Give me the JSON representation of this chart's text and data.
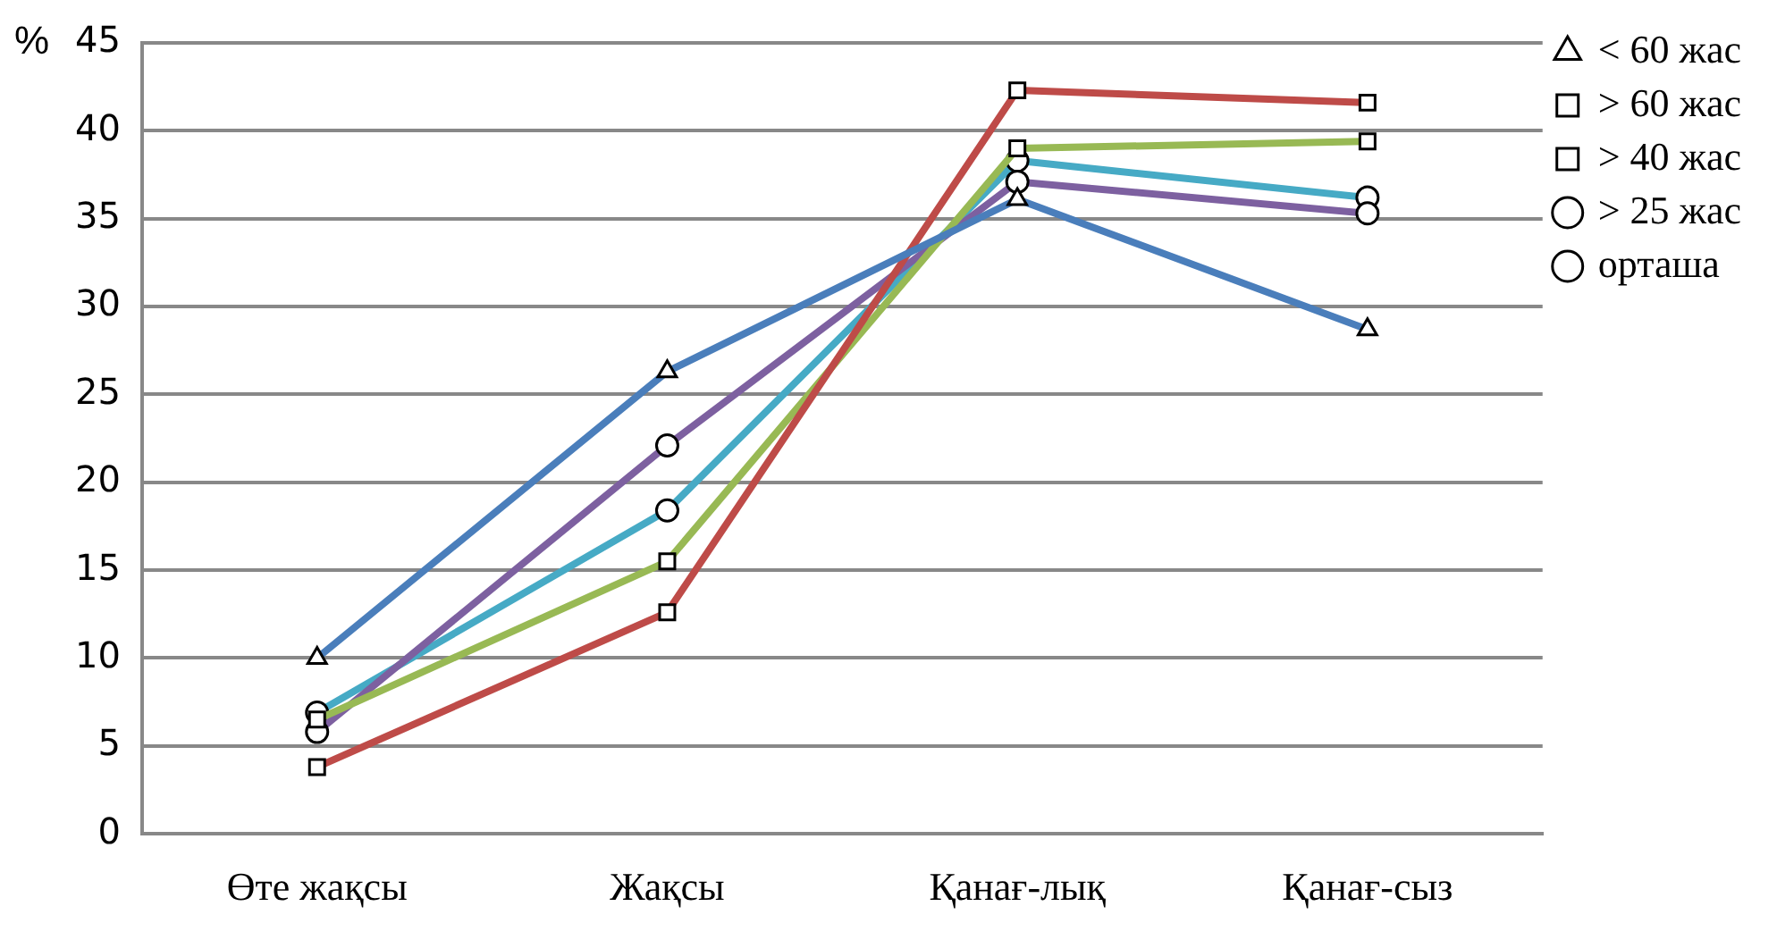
{
  "chart_data": {
    "type": "line",
    "ylabel": "%",
    "categories": [
      "Өте жақсы",
      "Жақсы",
      "Қанағ-лық",
      "Қанағ-сыз"
    ],
    "series": [
      {
        "name": "< 60 жас",
        "color": "#4a7ebb",
        "marker": "triangle",
        "values": [
          10,
          26.3,
          36.1,
          28.7
        ]
      },
      {
        "name": "> 60 жас",
        "color": "#be4b48",
        "marker": "square",
        "values": [
          3.8,
          12.6,
          42.3,
          41.6
        ]
      },
      {
        "name": "> 40 жас",
        "color": "#98b954",
        "marker": "square",
        "values": [
          6.5,
          15.5,
          39,
          39.4
        ]
      },
      {
        "name": "> 25 жас",
        "color": "#7d60a0",
        "marker": "circle",
        "values": [
          5.8,
          22.1,
          37.1,
          35.3
        ]
      },
      {
        "name": "орташа",
        "color": "#46aac5",
        "marker": "circle",
        "values": [
          6.9,
          18.4,
          38.3,
          36.2
        ]
      }
    ],
    "ylim": [
      0,
      45
    ],
    "yticks": [
      0,
      5,
      10,
      15,
      20,
      25,
      30,
      35,
      40,
      45
    ],
    "grid": "y",
    "legend": "right",
    "line_style": "solid"
  }
}
